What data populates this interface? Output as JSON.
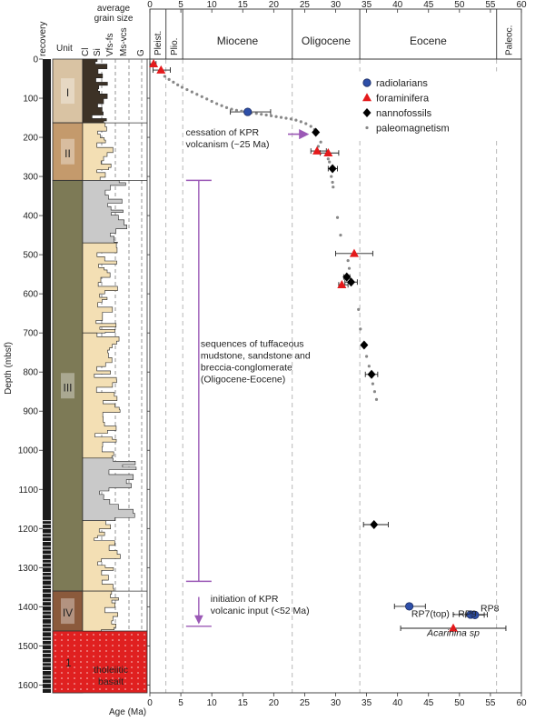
{
  "chart_data": {
    "type": "scatter",
    "xlabel": "Age (Ma)",
    "ylabel": "Depth (mbsf)",
    "xlim": [
      0,
      60
    ],
    "ylim": [
      0,
      1620
    ],
    "x_ticks": [
      0,
      5,
      10,
      15,
      20,
      25,
      30,
      35,
      40,
      45,
      50,
      55,
      60
    ],
    "y_ticks": [
      0,
      100,
      200,
      300,
      400,
      500,
      600,
      700,
      800,
      900,
      1000,
      1100,
      1200,
      1300,
      1400,
      1500,
      1600
    ],
    "epochs": [
      {
        "name": "Pleist.",
        "start": 0,
        "end": 2.6,
        "vertical": true
      },
      {
        "name": "Plio.",
        "start": 2.6,
        "end": 5.3,
        "vertical": true
      },
      {
        "name": "Miocene",
        "start": 5.3,
        "end": 23.0,
        "vertical": false
      },
      {
        "name": "Oligocene",
        "start": 23.0,
        "end": 33.9,
        "vertical": false
      },
      {
        "name": "Eocene",
        "start": 33.9,
        "end": 56.0,
        "vertical": false
      },
      {
        "name": "Paleoc.",
        "start": 56.0,
        "end": 60,
        "vertical": true
      }
    ],
    "legend_position": "top-right",
    "series": [
      {
        "name": "radiolarians",
        "marker": "circle",
        "color": "#2e4fa8",
        "points": [
          {
            "x": 15.8,
            "y": 135,
            "xmin": 13.0,
            "xmax": 19.5
          },
          {
            "x": 41.9,
            "y": 1399,
            "xmin": 39.5,
            "xmax": 44.5
          },
          {
            "x": 51.8,
            "y": 1420,
            "xmin": 49.0,
            "xmax": 54.5
          },
          {
            "x": 52.5,
            "y": 1421,
            "xmin": 51.0,
            "xmax": 54.0
          }
        ]
      },
      {
        "name": "foraminifera",
        "marker": "triangle",
        "color": "#e41a1c",
        "points": [
          {
            "x": 0.6,
            "y": 12,
            "xmin": 0.0,
            "xmax": 1.0
          },
          {
            "x": 1.8,
            "y": 28,
            "xmin": 0.5,
            "xmax": 3.3
          },
          {
            "x": 27.0,
            "y": 235,
            "xmin": 26.0,
            "xmax": 28.5
          },
          {
            "x": 28.8,
            "y": 240,
            "xmin": 27.5,
            "xmax": 30.5
          },
          {
            "x": 33.0,
            "y": 497,
            "xmin": 30.0,
            "xmax": 36.0
          },
          {
            "x": 31.0,
            "y": 577,
            "xmin": 30.5,
            "xmax": 32.0
          },
          {
            "x": 49.0,
            "y": 1455,
            "xmin": 40.5,
            "xmax": 57.5
          }
        ]
      },
      {
        "name": "nannofossils",
        "marker": "diamond",
        "color": "#000000",
        "points": [
          {
            "x": 26.8,
            "y": 187,
            "xmin": 26.8,
            "xmax": 26.8
          },
          {
            "x": 29.5,
            "y": 280,
            "xmin": 28.8,
            "xmax": 30.3
          },
          {
            "x": 31.8,
            "y": 557,
            "xmin": 31.3,
            "xmax": 32.3
          },
          {
            "x": 32.5,
            "y": 570,
            "xmin": 31.5,
            "xmax": 33.5
          },
          {
            "x": 34.6,
            "y": 731,
            "xmin": 34.6,
            "xmax": 34.6
          },
          {
            "x": 35.8,
            "y": 806,
            "xmin": 34.8,
            "xmax": 36.8
          },
          {
            "x": 36.2,
            "y": 1190,
            "xmin": 34.5,
            "xmax": 38.5
          }
        ]
      },
      {
        "name": "paleomagnetism",
        "marker": "dot",
        "color": "#888888",
        "points": [
          {
            "x": 2.4,
            "y": 44
          },
          {
            "x": 3.1,
            "y": 52
          },
          {
            "x": 3.8,
            "y": 59
          },
          {
            "x": 4.5,
            "y": 66
          },
          {
            "x": 5.2,
            "y": 72
          },
          {
            "x": 6.0,
            "y": 78
          },
          {
            "x": 6.8,
            "y": 84
          },
          {
            "x": 7.6,
            "y": 90
          },
          {
            "x": 8.4,
            "y": 96
          },
          {
            "x": 9.2,
            "y": 102
          },
          {
            "x": 10.0,
            "y": 108
          },
          {
            "x": 10.8,
            "y": 114
          },
          {
            "x": 11.6,
            "y": 119
          },
          {
            "x": 12.4,
            "y": 124
          },
          {
            "x": 13.2,
            "y": 128
          },
          {
            "x": 14.0,
            "y": 131
          },
          {
            "x": 14.8,
            "y": 133
          },
          {
            "x": 15.6,
            "y": 135
          },
          {
            "x": 16.4,
            "y": 137
          },
          {
            "x": 17.2,
            "y": 139
          },
          {
            "x": 18.0,
            "y": 141
          },
          {
            "x": 18.8,
            "y": 143
          },
          {
            "x": 19.6,
            "y": 145
          },
          {
            "x": 20.4,
            "y": 147
          },
          {
            "x": 21.2,
            "y": 149
          },
          {
            "x": 22.0,
            "y": 151
          },
          {
            "x": 22.8,
            "y": 153
          },
          {
            "x": 23.6,
            "y": 156
          },
          {
            "x": 24.4,
            "y": 160
          },
          {
            "x": 25.2,
            "y": 165
          },
          {
            "x": 26.0,
            "y": 172
          },
          {
            "x": 26.6,
            "y": 180
          },
          {
            "x": 27.6,
            "y": 212
          },
          {
            "x": 27.2,
            "y": 223
          },
          {
            "x": 28.8,
            "y": 255
          },
          {
            "x": 29.0,
            "y": 263
          },
          {
            "x": 29.3,
            "y": 300
          },
          {
            "x": 29.5,
            "y": 315
          },
          {
            "x": 29.6,
            "y": 327
          },
          {
            "x": 30.3,
            "y": 405
          },
          {
            "x": 30.8,
            "y": 450
          },
          {
            "x": 32.0,
            "y": 515
          },
          {
            "x": 32.2,
            "y": 535
          },
          {
            "x": 33.7,
            "y": 640
          },
          {
            "x": 34.0,
            "y": 690
          },
          {
            "x": 35.0,
            "y": 760
          },
          {
            "x": 35.4,
            "y": 785
          },
          {
            "x": 36.0,
            "y": 830
          },
          {
            "x": 36.3,
            "y": 850
          },
          {
            "x": 36.6,
            "y": 870
          }
        ]
      }
    ],
    "annotations": {
      "kpr_cessation": "cessation of KPR\nvolcanism (~25 Ma)",
      "sequences": "sequences of tuffaceous\nmudstone, sandstone and\nbreccia-conglomerate\n(Oligocene-Eocene)",
      "kpr_initiation": "initiation of KPR\nvolcanic input (<52 Ma)",
      "rp7": "RP7(top) - RP9",
      "rp8": "RP8",
      "acarinina": "Acarinina sp"
    },
    "lithology": {
      "recovery_label": "recovery",
      "unit_label": "Unit",
      "grain_size_title": "average\ngrain size",
      "grain_size_classes": [
        "Cl",
        "Si",
        "Vfs-fs",
        "Ms-vcs",
        "G"
      ],
      "units": [
        {
          "name": "I",
          "top": 0,
          "bottom": 163,
          "color": "#d9c3a3"
        },
        {
          "name": "II",
          "top": 163,
          "bottom": 310,
          "color": "#c49a6c"
        },
        {
          "name": "III",
          "top": 310,
          "bottom": 1360,
          "color": "#7d7a56"
        },
        {
          "name": "IV",
          "top": 1360,
          "bottom": 1462,
          "color": "#8b5a3c"
        },
        {
          "name": "1",
          "top": 1462,
          "bottom": 1620,
          "color": "#e02020",
          "label": "tholeiitic\nbasalt"
        }
      ]
    },
    "colors": {
      "radiolarians": "#2e4fa8",
      "foraminifera": "#e41a1c",
      "nannofossils": "#000000",
      "paleomagnetism": "#888888",
      "annotation_purple": "#9b59b6",
      "label_blue": "#2e4fa8",
      "label_red": "#e41a1c"
    }
  }
}
